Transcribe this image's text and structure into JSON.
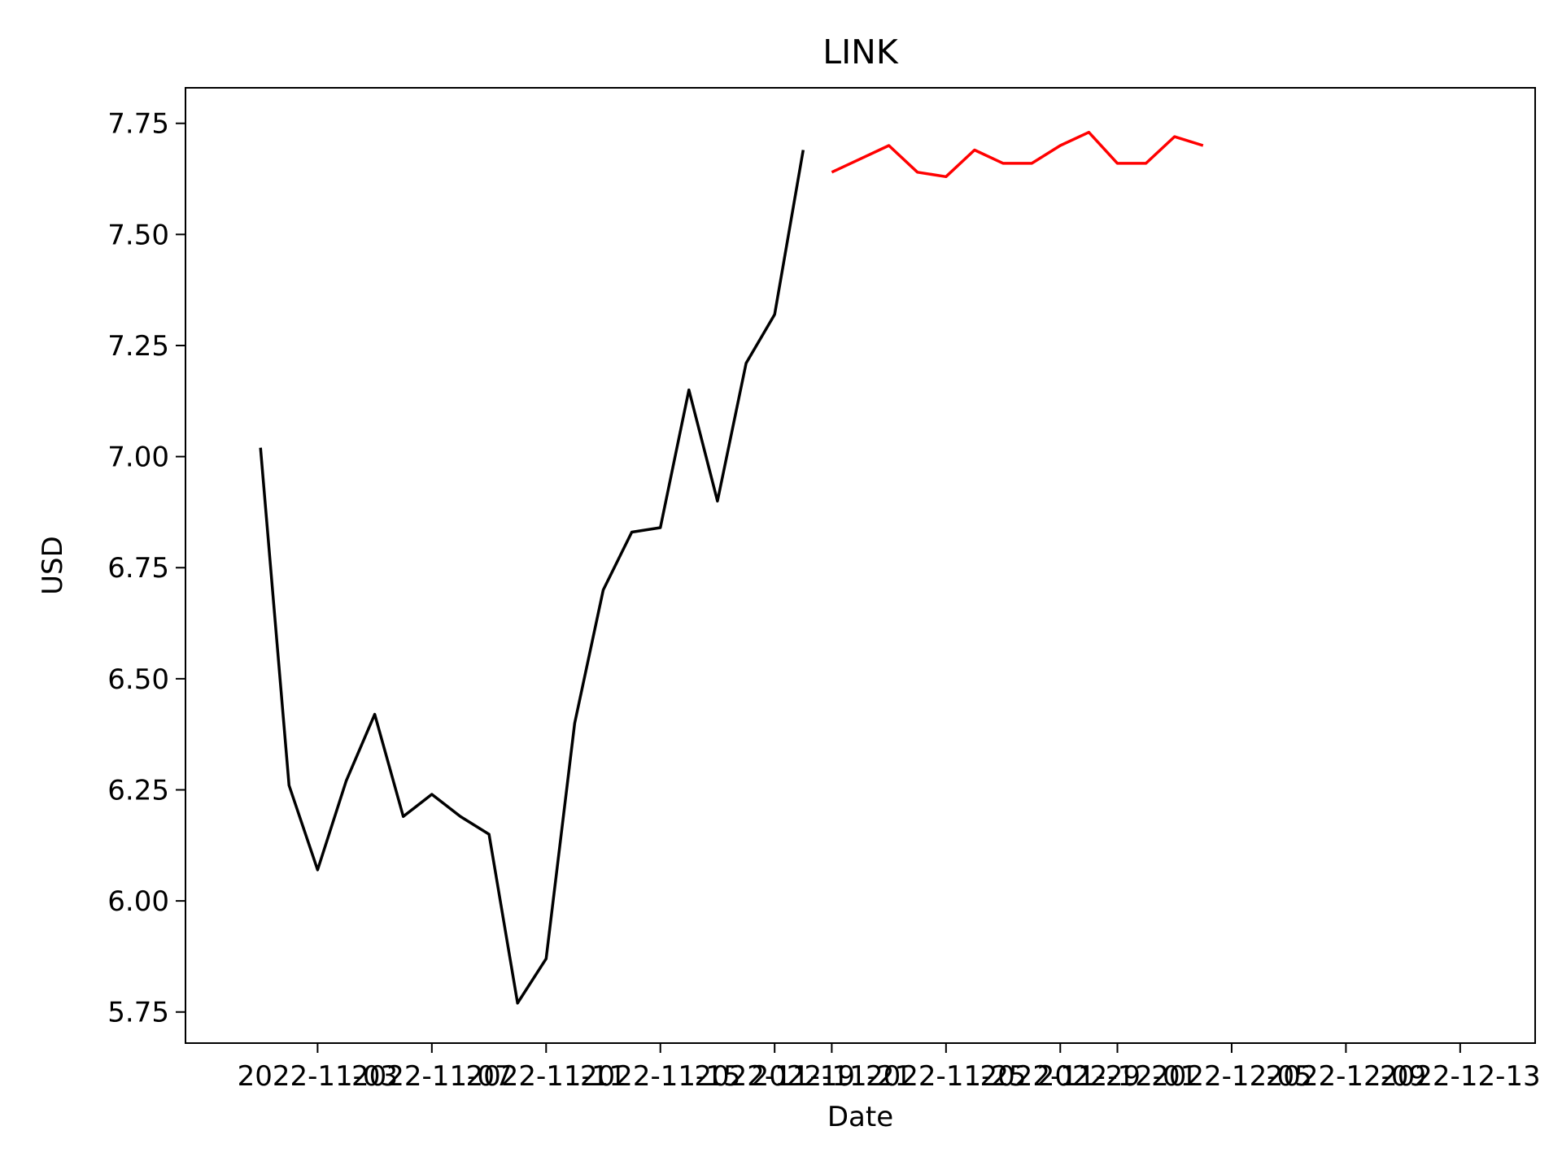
{
  "chart_data": {
    "type": "line",
    "title": "LINK",
    "xlabel": "Date",
    "ylabel": "USD",
    "ylim": [
      5.68,
      7.83
    ],
    "xlim": [
      "2022-10-29T09:00",
      "2022-12-15T15:00"
    ],
    "grid": false,
    "y_ticks": [
      "5.75",
      "6.00",
      "6.25",
      "6.50",
      "6.75",
      "7.00",
      "7.25",
      "7.50",
      "7.75"
    ],
    "x_ticks": [
      "2022-11-03",
      "2022-11-07",
      "2022-11-11",
      "2022-11-15",
      "2022-11-19",
      "2022-11-21",
      "2022-11-25",
      "2022-11-29",
      "2022-12-01",
      "2022-12-05",
      "2022-12-09",
      "2022-12-13"
    ],
    "x_tick_dates": [
      "2022-11-03",
      "2022-11-07",
      "2022-11-11",
      "2022-11-15",
      "2022-11-19",
      "2022-11-21",
      "2022-11-25",
      "2022-11-29",
      "2022-12-01",
      "2022-12-05",
      "2022-12-09",
      "2022-12-13"
    ],
    "series": [
      {
        "color": "#000000",
        "x": [
          "2022-11-01",
          "2022-11-02",
          "2022-11-03",
          "2022-11-04",
          "2022-11-05",
          "2022-11-06",
          "2022-11-07",
          "2022-11-08",
          "2022-11-09",
          "2022-11-10",
          "2022-11-11",
          "2022-11-12",
          "2022-11-13",
          "2022-11-14",
          "2022-11-15",
          "2022-11-16",
          "2022-11-17",
          "2022-11-18",
          "2022-11-19",
          "2022-11-20"
        ],
        "values": [
          7.02,
          6.26,
          6.07,
          6.27,
          6.42,
          6.19,
          6.24,
          6.19,
          6.15,
          5.77,
          5.87,
          6.4,
          6.7,
          6.83,
          6.84,
          7.15,
          6.9,
          7.21,
          7.32,
          7.69
        ]
      },
      {
        "color": "#ff0000",
        "x": [
          "2022-11-21",
          "2022-11-22",
          "2022-11-23",
          "2022-11-24",
          "2022-11-25",
          "2022-11-26",
          "2022-11-27",
          "2022-11-28",
          "2022-11-29",
          "2022-11-30",
          "2022-12-01",
          "2022-12-02",
          "2022-12-03",
          "2022-12-04"
        ],
        "values": [
          7.64,
          7.67,
          7.7,
          7.64,
          7.63,
          7.69,
          7.66,
          7.66,
          7.7,
          7.73,
          7.66,
          7.66,
          7.72,
          7.7
        ]
      }
    ]
  }
}
